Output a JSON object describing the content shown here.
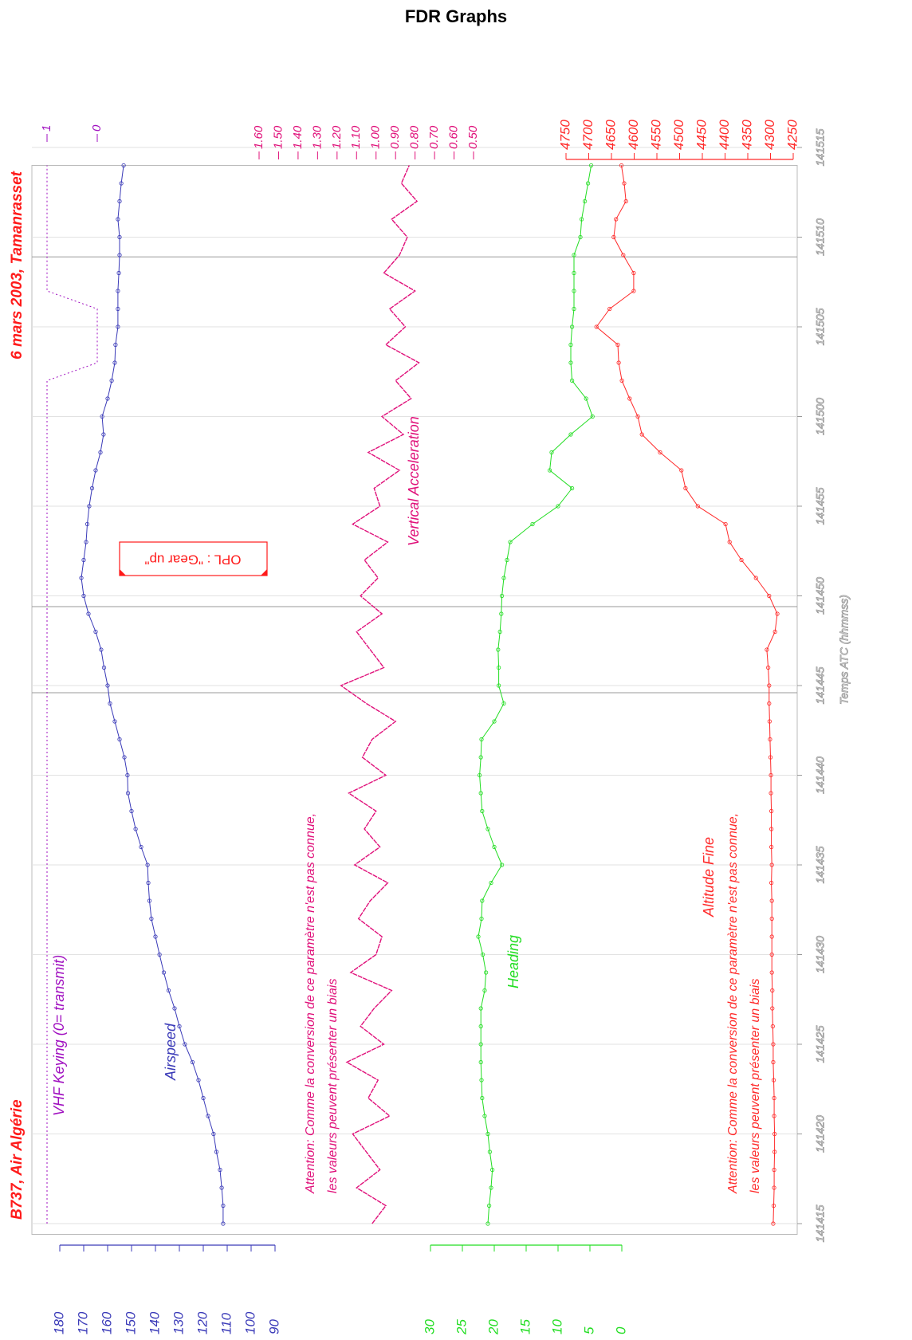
{
  "chart_data": {
    "type": "line",
    "title": "FDR Graphs",
    "header_left": "B737, Air Algérie",
    "header_right": "6 mars 2003, Tamanrasset",
    "x_label": "Temps ATC (hhmmss)",
    "notes": [
      "Attention: Comme la conversion de ce paramètre n'est pas connue,",
      "les valeurs peuvent présenter un biais"
    ],
    "callout": "OPL : \"Gear up\"",
    "x": [
      51255,
      51256,
      51257,
      51258,
      51259,
      51260,
      51261,
      51262,
      51263,
      51264,
      51265,
      51266,
      51267,
      51268,
      51269,
      51270,
      51271,
      51272,
      51273,
      51274,
      51275,
      51276,
      51277,
      51278,
      51279,
      51280,
      51281,
      51282,
      51283,
      51284,
      51285,
      51286,
      51287,
      51288,
      51289,
      51290,
      51291,
      51292,
      51293,
      51294,
      51295,
      51296,
      51297,
      51298,
      51299,
      51300,
      51301,
      51302,
      51303,
      51304,
      51305,
      51306,
      51307,
      51308,
      51309,
      51310,
      51311,
      51312,
      51313,
      51314
    ],
    "xlim": [
      51254.4,
      51314
    ],
    "xticks": [
      {
        "value": 51255,
        "label": "141415"
      },
      {
        "value": 51260,
        "label": "141420"
      },
      {
        "value": 51265,
        "label": "141425"
      },
      {
        "value": 51270,
        "label": "141430"
      },
      {
        "value": 51275,
        "label": "141435"
      },
      {
        "value": 51280,
        "label": "141440"
      },
      {
        "value": 51285,
        "label": "141445"
      },
      {
        "value": 51290,
        "label": "141450"
      },
      {
        "value": 51295,
        "label": "141455"
      },
      {
        "value": 51300,
        "label": "141500"
      },
      {
        "value": 51305,
        "label": "141505"
      },
      {
        "value": 51310,
        "label": "141510"
      },
      {
        "value": 51315,
        "label": "141515"
      }
    ],
    "event_lines": [
      51284.6,
      51289.4,
      51308.9
    ],
    "grid": true,
    "series": [
      {
        "name": "Airspeed",
        "color": "#3a3ab8",
        "markers": true,
        "ylim": [
          90,
          180
        ],
        "yticks": [
          180,
          170,
          160,
          150,
          140,
          130,
          120,
          110,
          100,
          90
        ],
        "values": [
          111.7,
          111.7,
          112.3,
          113,
          114.5,
          115.7,
          118,
          120,
          122,
          124.5,
          127.7,
          130,
          132,
          134.5,
          136.5,
          138.3,
          140,
          141.7,
          142.5,
          143,
          143.3,
          146,
          148.3,
          150,
          151.5,
          151.7,
          153,
          155,
          157,
          159,
          160,
          161.5,
          162.7,
          165,
          168,
          170,
          171,
          170,
          169,
          168.5,
          167.7,
          166.5,
          165,
          163,
          161.7,
          162.3,
          160,
          158.3,
          157,
          156.7,
          155.7,
          155.7,
          155.7,
          155.3,
          155,
          155,
          155.7,
          155,
          154.3,
          153.3
        ]
      },
      {
        "name": "VHF Keying (0= transmit)",
        "color": "#a010c0",
        "markers": false,
        "ylim": [
          0,
          1
        ],
        "yticks": [
          1,
          0
        ],
        "values": [
          1,
          1,
          1,
          1,
          1,
          1,
          1,
          1,
          1,
          1,
          1,
          1,
          1,
          1,
          1,
          1,
          1,
          1,
          1,
          1,
          1,
          1,
          1,
          1,
          1,
          1,
          1,
          1,
          1,
          1,
          1,
          1,
          1,
          1,
          1,
          1,
          1,
          1,
          1,
          1,
          1,
          1,
          1,
          1,
          1,
          1,
          1,
          1,
          0,
          0,
          0,
          0,
          1,
          1,
          1,
          1,
          1,
          1,
          1,
          1
        ]
      },
      {
        "name": "Vertical Acceleration",
        "color": "#e0107a",
        "markers": false,
        "ylim": [
          0.5,
          1.6
        ],
        "yticks": [
          {
            "value": 1.6,
            "label": "1.60"
          },
          {
            "value": 1.5,
            "label": "1.50"
          },
          {
            "value": 1.4,
            "label": "1.40"
          },
          {
            "value": 1.3,
            "label": "1.30"
          },
          {
            "value": 1.2,
            "label": "1.20"
          },
          {
            "value": 1.1,
            "label": "1.10"
          },
          {
            "value": 1,
            "label": "1.00"
          },
          {
            "value": 0.9,
            "label": "0.90"
          },
          {
            "value": 0.8,
            "label": "0.80"
          },
          {
            "value": 0.7,
            "label": "0.70"
          },
          {
            "value": 0.6,
            "label": "0.60"
          },
          {
            "value": 0.5,
            "label": "0.50"
          }
        ],
        "values": [
          1.02,
          0.95,
          1.1,
          0.98,
          1.05,
          1.12,
          0.93,
          1.04,
          0.99,
          1.15,
          0.96,
          1.08,
          1.01,
          0.92,
          1.13,
          1.0,
          0.97,
          1.09,
          1.03,
          0.94,
          1.11,
          0.98,
          1.06,
          1.0,
          1.14,
          0.95,
          1.07,
          1.02,
          0.9,
          1.05,
          1.18,
          0.96,
          1.03,
          1.1,
          0.97,
          1.08,
          0.99,
          1.06,
          0.94,
          1.12,
          0.98,
          1.01,
          0.88,
          1.04,
          0.86,
          0.97,
          0.82,
          0.9,
          0.78,
          0.95,
          0.85,
          0.93,
          0.8,
          0.96,
          0.88,
          0.84,
          0.92,
          0.79,
          0.87,
          0.83
        ]
      },
      {
        "name": "Heading",
        "color": "#22dd22",
        "markers": true,
        "ylim": [
          0,
          30
        ],
        "yticks": [
          30,
          25,
          20,
          15,
          10,
          5,
          0
        ],
        "values": [
          21.0,
          20.8,
          20.5,
          20.3,
          20.7,
          21.0,
          21.5,
          21.9,
          22.0,
          22.1,
          22.1,
          22.1,
          22.1,
          21.5,
          21.3,
          21.8,
          22.5,
          22.0,
          21.9,
          20.5,
          18.8,
          20.0,
          21.0,
          21.9,
          22.1,
          22.3,
          22.1,
          22.0,
          20.0,
          18.5,
          19.3,
          19.3,
          19.4,
          19.1,
          18.9,
          18.8,
          18.5,
          18.0,
          17.5,
          14.0,
          10.0,
          7.8,
          11.3,
          11.0,
          8.0,
          4.6,
          5.6,
          7.8,
          8.0,
          8.0,
          7.8,
          7.5,
          7.5,
          7.5,
          7.5,
          6.5,
          6.3,
          5.8,
          5.3,
          4.8
        ]
      },
      {
        "name": "Altitude Fine",
        "color": "#ff2a2a",
        "markers": true,
        "ylim": [
          4250,
          4750
        ],
        "yticks": [
          4750,
          4700,
          4650,
          4600,
          4550,
          4500,
          4450,
          4400,
          4350,
          4300,
          4250
        ],
        "values": [
          4294,
          4293,
          4292,
          4292,
          4291,
          4291,
          4292,
          4292,
          4293,
          4294,
          4294,
          4295,
          4296,
          4296,
          4297,
          4297,
          4297,
          4297,
          4297,
          4298,
          4297,
          4298,
          4298,
          4298,
          4299,
          4299,
          4300,
          4301,
          4302,
          4303,
          4303,
          4305,
          4308,
          4290,
          4285,
          4303,
          4332,
          4364,
          4390,
          4399,
          4460,
          4487,
          4496,
          4543,
          4583,
          4592,
          4610,
          4627,
          4634,
          4636,
          4683,
          4654,
          4601,
          4601,
          4624,
          4645,
          4640,
          4618,
          4622,
          4628
        ]
      }
    ]
  }
}
